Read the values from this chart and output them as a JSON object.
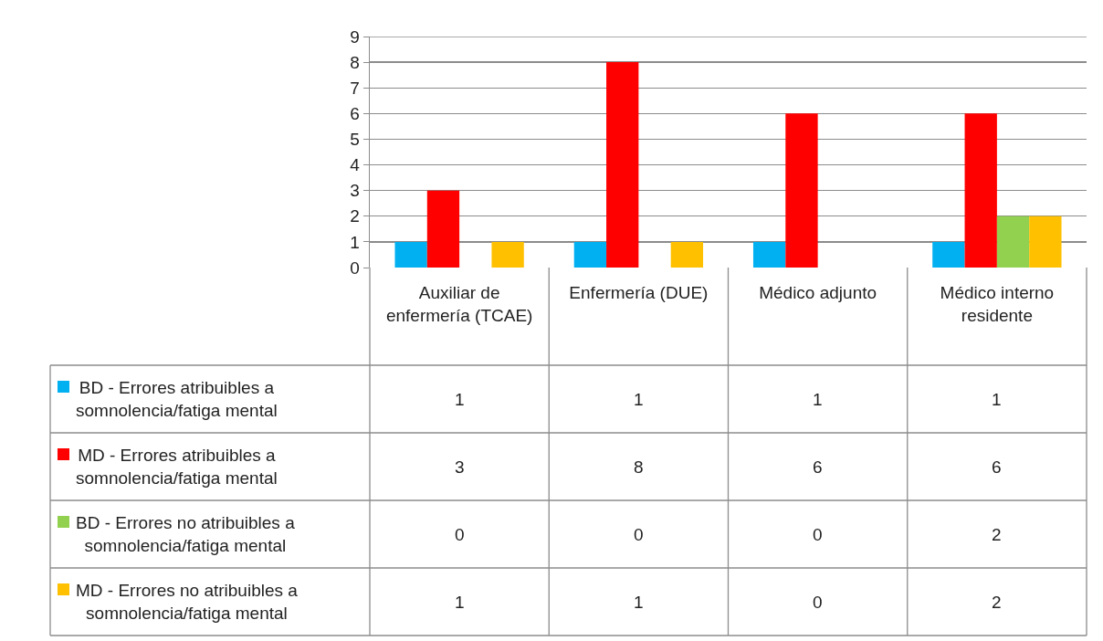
{
  "chart_data": {
    "type": "bar",
    "categories": [
      "Auxiliar de enfermería (TCAE)",
      "Enfermería (DUE)",
      "Médico adjunto",
      "Médico interno residente"
    ],
    "series": [
      {
        "name": "BD - Errores atribuibles a somnolencia/fatiga mental",
        "color": "#00b0f0",
        "values": [
          1,
          1,
          1,
          1
        ]
      },
      {
        "name": "MD - Errores atribuibles a somnolencia/fatiga mental",
        "color": "#ff0000",
        "values": [
          3,
          8,
          6,
          6
        ]
      },
      {
        "name": "BD - Errores no atribuibles a somnolencia/fatiga mental",
        "color": "#92d050",
        "values": [
          0,
          0,
          0,
          2
        ]
      },
      {
        "name": "MD - Errores no atribuibles a somnolencia/fatiga mental",
        "color": "#ffc000",
        "values": [
          1,
          1,
          0,
          2
        ]
      }
    ],
    "ylim": [
      0,
      9
    ],
    "yticks": [
      0,
      1,
      2,
      3,
      4,
      5,
      6,
      7,
      8,
      9
    ],
    "grid": "y",
    "legend": "bottom left",
    "data_labels": true
  }
}
